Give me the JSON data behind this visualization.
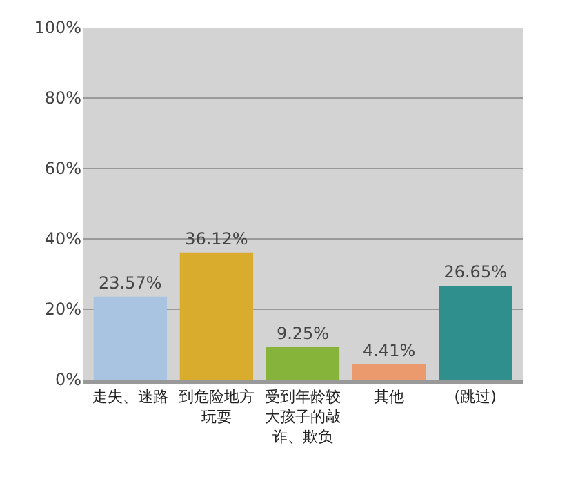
{
  "chart_data": {
    "type": "bar",
    "categories": [
      "走失、迷路",
      "到危险地方玩耍",
      "受到年龄较大孩子的敲诈、欺负",
      "其他",
      "(跳过)"
    ],
    "values": [
      23.57,
      36.12,
      9.25,
      4.41,
      26.65
    ],
    "colors": [
      "#a9c4e0",
      "#d9ac2e",
      "#86b43a",
      "#eb9a6e",
      "#2e8f8c"
    ],
    "value_labels": [
      "23.57%",
      "36.12%",
      "9.25%",
      "4.41%",
      "26.65%"
    ],
    "ylim": [
      0,
      100
    ],
    "yticks": [
      {
        "value": 0,
        "label": "0%"
      },
      {
        "value": 20,
        "label": "20%"
      },
      {
        "value": 40,
        "label": "40%"
      },
      {
        "value": 60,
        "label": "60%"
      },
      {
        "value": 80,
        "label": "80%"
      },
      {
        "value": 100,
        "label": "100%"
      }
    ],
    "grid": "y"
  }
}
